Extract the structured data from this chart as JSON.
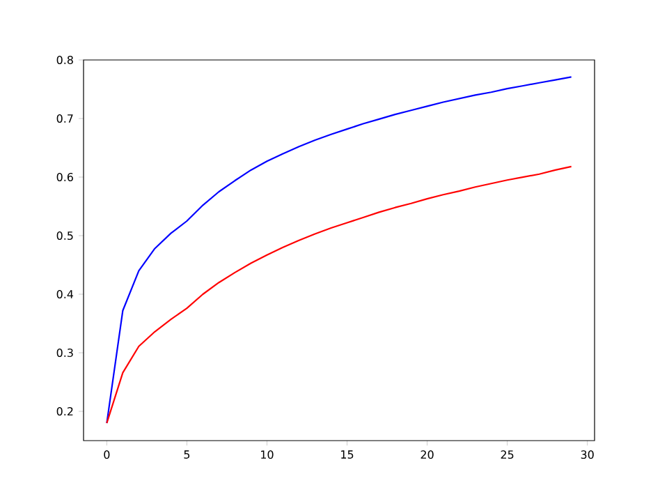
{
  "chart_data": {
    "type": "line",
    "x": [
      0,
      1,
      2,
      3,
      4,
      5,
      6,
      7,
      8,
      9,
      10,
      11,
      12,
      13,
      14,
      15,
      16,
      17,
      18,
      19,
      20,
      21,
      22,
      23,
      24,
      25,
      26,
      27,
      28,
      29
    ],
    "series": [
      {
        "color": "#0000ff",
        "values": [
          0.18,
          0.372,
          0.44,
          0.478,
          0.504,
          0.525,
          0.552,
          0.575,
          0.594,
          0.612,
          0.627,
          0.64,
          0.652,
          0.663,
          0.673,
          0.682,
          0.691,
          0.699,
          0.707,
          0.714,
          0.721,
          0.728,
          0.734,
          0.74,
          0.745,
          0.751,
          0.756,
          0.761,
          0.766,
          0.771
        ]
      },
      {
        "color": "#ff0000",
        "values": [
          0.18,
          0.266,
          0.311,
          0.336,
          0.357,
          0.376,
          0.4,
          0.42,
          0.437,
          0.453,
          0.467,
          0.48,
          0.492,
          0.503,
          0.513,
          0.522,
          0.531,
          0.54,
          0.548,
          0.555,
          0.563,
          0.57,
          0.576,
          0.583,
          0.589,
          0.595,
          0.6,
          0.605,
          0.612,
          0.618
        ]
      }
    ],
    "xlim": [
      -1.45,
      30.45
    ],
    "ylim": [
      0.15,
      0.8
    ],
    "xticks": [
      0,
      5,
      10,
      15,
      20,
      25,
      30
    ],
    "yticks": [
      0.2,
      0.3,
      0.4,
      0.5,
      0.6,
      0.7,
      0.8
    ]
  }
}
